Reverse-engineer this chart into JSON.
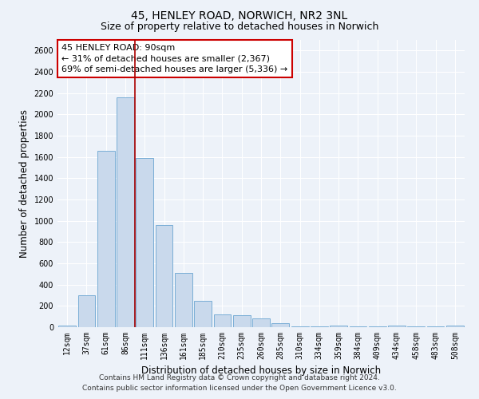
{
  "title_line1": "45, HENLEY ROAD, NORWICH, NR2 3NL",
  "title_line2": "Size of property relative to detached houses in Norwich",
  "xlabel": "Distribution of detached houses by size in Norwich",
  "ylabel": "Number of detached properties",
  "categories": [
    "12sqm",
    "37sqm",
    "61sqm",
    "86sqm",
    "111sqm",
    "136sqm",
    "161sqm",
    "185sqm",
    "210sqm",
    "235sqm",
    "260sqm",
    "285sqm",
    "310sqm",
    "334sqm",
    "359sqm",
    "384sqm",
    "409sqm",
    "434sqm",
    "458sqm",
    "483sqm",
    "508sqm"
  ],
  "values": [
    15,
    300,
    1660,
    2160,
    1590,
    960,
    510,
    245,
    120,
    115,
    80,
    35,
    10,
    5,
    15,
    5,
    5,
    15,
    5,
    5,
    15
  ],
  "bar_color": "#c9d9ec",
  "bar_edge_color": "#7aaed6",
  "vline_x": 3.5,
  "vline_color": "#aa0000",
  "annotation_text": "45 HENLEY ROAD: 90sqm\n← 31% of detached houses are smaller (2,367)\n69% of semi-detached houses are larger (5,336) →",
  "annotation_box_facecolor": "white",
  "annotation_box_edgecolor": "#cc0000",
  "ylim": [
    0,
    2700
  ],
  "yticks": [
    0,
    200,
    400,
    600,
    800,
    1000,
    1200,
    1400,
    1600,
    1800,
    2000,
    2200,
    2400,
    2600
  ],
  "footer_line1": "Contains HM Land Registry data © Crown copyright and database right 2024.",
  "footer_line2": "Contains public sector information licensed under the Open Government Licence v3.0.",
  "background_color": "#edf2f9",
  "grid_color": "#ffffff",
  "title_fontsize": 10,
  "subtitle_fontsize": 9,
  "axis_label_fontsize": 8.5,
  "tick_fontsize": 7,
  "annotation_fontsize": 8,
  "footer_fontsize": 6.5
}
